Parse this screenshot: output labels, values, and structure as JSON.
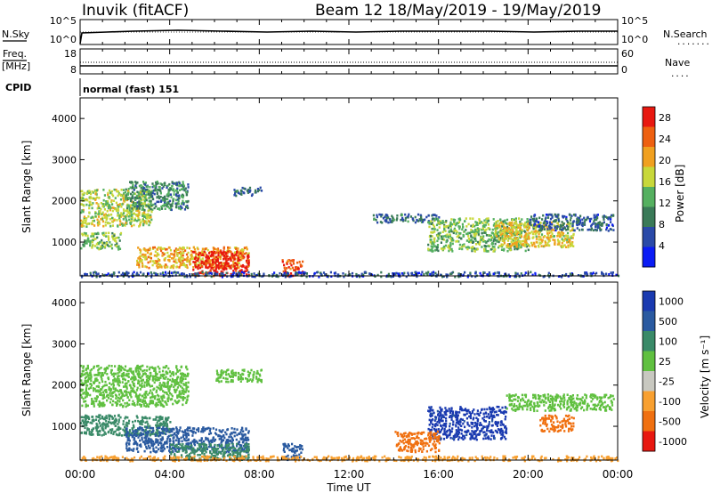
{
  "header": {
    "station": "Inuvik (fitACF)",
    "beam_date": "Beam 12 18/May/2019 - 19/May/2019"
  },
  "top_panel": {
    "left_label": "N.Sky",
    "left_ticks": [
      "10^5",
      "10^0"
    ],
    "right_ticks": [
      "10^5",
      "10^0"
    ],
    "right_label": "N.Search",
    "right_legend": "........"
  },
  "freq_panel": {
    "left_label_1": "Freq.",
    "left_label_2": "[MHz]",
    "left_ticks": [
      "18",
      "8"
    ],
    "right_ticks": [
      "60",
      "0"
    ],
    "right_label": "Nave",
    "right_legend": "...."
  },
  "cpid": {
    "label": "CPID",
    "value": "normal (fast) 151"
  },
  "x_axis": {
    "title": "Time UT",
    "tick_labels": [
      "00:00",
      "04:00",
      "08:00",
      "12:00",
      "16:00",
      "20:00",
      "00:00"
    ]
  },
  "chart_data": [
    {
      "type": "heatmap",
      "name": "power",
      "ylabel": "Slant Range [km]",
      "y_ticks": [
        "1000",
        "2000",
        "3000",
        "4000"
      ],
      "ylim": [
        180,
        4500
      ],
      "xlim_hours": [
        0,
        24
      ],
      "colorbar": {
        "title": "Power [dB]",
        "ticks": [
          "4",
          "8",
          "12",
          "16",
          "20",
          "24",
          "28"
        ],
        "range": [
          0,
          30
        ],
        "colors": [
          "#0b1cf5",
          "#2a4aa8",
          "#3a7a58",
          "#55b060",
          "#c8d83a",
          "#f0a020",
          "#ee6010",
          "#e81810"
        ]
      },
      "regions": [
        {
          "t": [
            0.0,
            3.2
          ],
          "r": [
            1400,
            2300
          ],
          "v": 16
        },
        {
          "t": [
            2.0,
            4.8
          ],
          "r": [
            1800,
            2500
          ],
          "v": 10
        },
        {
          "t": [
            6.8,
            8.1
          ],
          "r": [
            2150,
            2350
          ],
          "v": 8
        },
        {
          "t": [
            0.0,
            1.8
          ],
          "r": [
            850,
            1250
          ],
          "v": 14
        },
        {
          "t": [
            2.5,
            7.5
          ],
          "r": [
            400,
            900
          ],
          "v": 20
        },
        {
          "t": [
            5.0,
            7.5
          ],
          "r": [
            200,
            800
          ],
          "v": 28
        },
        {
          "t": [
            9.0,
            9.9
          ],
          "r": [
            200,
            600
          ],
          "v": 26
        },
        {
          "t": [
            0.0,
            24.0
          ],
          "r": [
            180,
            300
          ],
          "v": 6
        },
        {
          "t": [
            13.0,
            16.0
          ],
          "r": [
            1500,
            1700
          ],
          "v": 8
        },
        {
          "t": [
            15.5,
            20.0
          ],
          "r": [
            800,
            1600
          ],
          "v": 14
        },
        {
          "t": [
            18.5,
            22.0
          ],
          "r": [
            900,
            1500
          ],
          "v": 18
        },
        {
          "t": [
            20.0,
            23.8
          ],
          "r": [
            1300,
            1700
          ],
          "v": 7
        }
      ]
    },
    {
      "type": "heatmap",
      "name": "velocity",
      "ylabel": "Slant Range [km]",
      "y_ticks": [
        "1000",
        "2000",
        "3000",
        "4000"
      ],
      "ylim": [
        180,
        4500
      ],
      "xlim_hours": [
        0,
        24
      ],
      "colorbar": {
        "title": "Velocity [m s⁻¹]",
        "ticks": [
          "1000",
          "500",
          "100",
          "25",
          "-25",
          "-100",
          "-500",
          "-1000"
        ],
        "colors": [
          "#1a3ab0",
          "#2a5aa0",
          "#3a8a68",
          "#60c040",
          "#c8c8c0",
          "#f8a030",
          "#f07010",
          "#e81810"
        ]
      },
      "regions": [
        {
          "t": [
            0.0,
            4.8
          ],
          "r": [
            1500,
            2500
          ],
          "v": 25
        },
        {
          "t": [
            6.0,
            8.1
          ],
          "r": [
            2100,
            2400
          ],
          "v": 25
        },
        {
          "t": [
            0.0,
            4.0
          ],
          "r": [
            800,
            1300
          ],
          "v": 100
        },
        {
          "t": [
            2.0,
            7.5
          ],
          "r": [
            400,
            1000
          ],
          "v": 500
        },
        {
          "t": [
            4.0,
            7.5
          ],
          "r": [
            200,
            600
          ],
          "v": 100
        },
        {
          "t": [
            9.0,
            9.9
          ],
          "r": [
            200,
            600
          ],
          "v": 500
        },
        {
          "t": [
            0.0,
            24.0
          ],
          "r": [
            180,
            300
          ],
          "v": -100
        },
        {
          "t": [
            15.5,
            19.0
          ],
          "r": [
            700,
            1500
          ],
          "v": 1000
        },
        {
          "t": [
            19.0,
            23.8
          ],
          "r": [
            1400,
            1800
          ],
          "v": 25
        },
        {
          "t": [
            20.5,
            22.0
          ],
          "r": [
            900,
            1300
          ],
          "v": -500
        },
        {
          "t": [
            14.0,
            16.0
          ],
          "r": [
            400,
            900
          ],
          "v": -500
        }
      ]
    }
  ]
}
